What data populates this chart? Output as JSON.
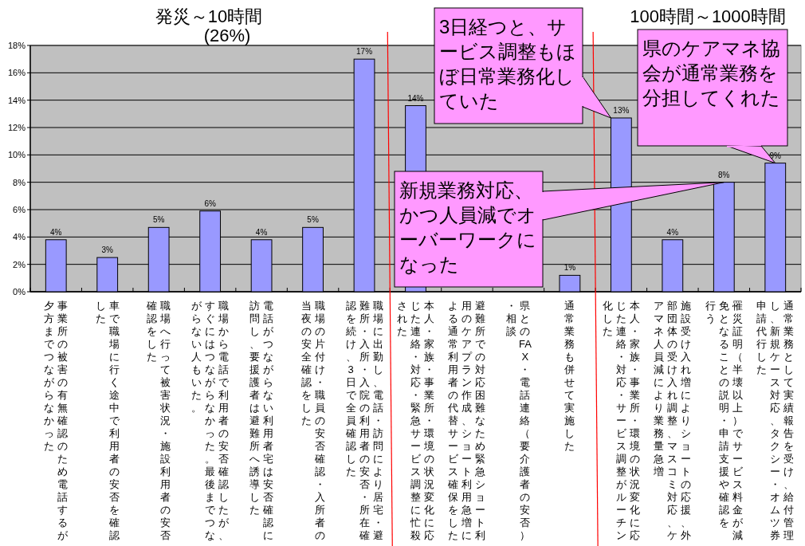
{
  "chart_data": {
    "type": "bar",
    "categories": [
      "事業所の被害の有無確認のため電話するが夕方までつながらなかった",
      "車で職場に行く途中で利用者の安否を確認した",
      "職場へ行って被害状況・施設利用者の安否確認をした",
      "職場から電話で利用者の安否確認したが、すぐにはつながらなかった。最後までつながらない人もいた。",
      "電話がつながらない利用者宅は安否確認に訪問し、要援護者は避難所へ誘導した",
      "職場の片付け・職員の安否確認・入所者の当夜の安全確認をした",
      "職場に出勤し、電話・訪問により居宅・避難所・入所・入院の利用者の安否・所在確認を続け、3日で全員確認した",
      "本人・家族・事業所・環境の状況変化に応じた連絡・対応・緊急サービス調整に忙殺された",
      "避難所での対応困難なため緊急ショート利用のケアプラン作成、ショート利用急増による通常利用者の代替サービス確保をした",
      "県とのFAX・電話連絡（要介護者の安否）・相談",
      "通常業務も併せて実施した",
      "本人・家族・事業所・環境の状況変化に応じた連絡・対応・サービス調整がルーチン化した",
      "施設受け入れ増によりショートの応援、外部団体の受け入れ調整、マスコミ対応、ケアマネ人員減により業務量急増",
      "罹災証明（半壊以上）でサービス料金が減免となることの説明・申請支援や確認を行う",
      "通常業務として実績報告を受け、給付管理し、新規ケース対応、タクシー・オムツ券申請代行した"
    ],
    "values": [
      3.8,
      2.5,
      4.7,
      5.9,
      3.8,
      4.7,
      17.0,
      13.6,
      null,
      null,
      1.2,
      12.7,
      3.8,
      8.0,
      9.4
    ],
    "value_labels": [
      "4%",
      "3%",
      "5%",
      "6%",
      "4%",
      "5%",
      "17%",
      "14%",
      null,
      null,
      "1%",
      "13%",
      "4%",
      "8%",
      "9%"
    ],
    "color": "#9999ff",
    "ylim": [
      0,
      18
    ],
    "yticks": [
      {
        "value": 0,
        "label": "0%"
      },
      {
        "value": 2,
        "label": "2%"
      },
      {
        "value": 4,
        "label": "4%"
      },
      {
        "value": 6,
        "label": "6%"
      },
      {
        "value": 8,
        "label": "8%"
      },
      {
        "value": 10,
        "label": "10%"
      },
      {
        "value": 12,
        "label": "12%"
      },
      {
        "value": 14,
        "label": "14%"
      },
      {
        "value": 16,
        "label": "16%"
      },
      {
        "value": 18,
        "label": "18%"
      }
    ],
    "grid": "y",
    "annotations": [
      "発災～10時間",
      "(26%)",
      "100時間～1000時間",
      {
        "text": "3日経つと、サービス調整もほぼ日常業務化していた",
        "x": "本人・家族・事業所・環境の状況変化に応じた連絡・対応・サービス調整がルーチン化した",
        "y": 12.7
      },
      {
        "text": "新規業務対応、かつ人員減でオーバーワークになった",
        "x": "罹災証明（半壊以上）でサービス料金が減免となることの説明・申請支援や確認を行う",
        "y": 8.0
      },
      {
        "text": "県のケアマネ協会が通常業務を分担してくれた",
        "x": "通常業務として実績報告を受け、給付管理し、新規ケース対応、タクシー・オムツ券申請代行した",
        "y": 9.4
      }
    ]
  }
}
